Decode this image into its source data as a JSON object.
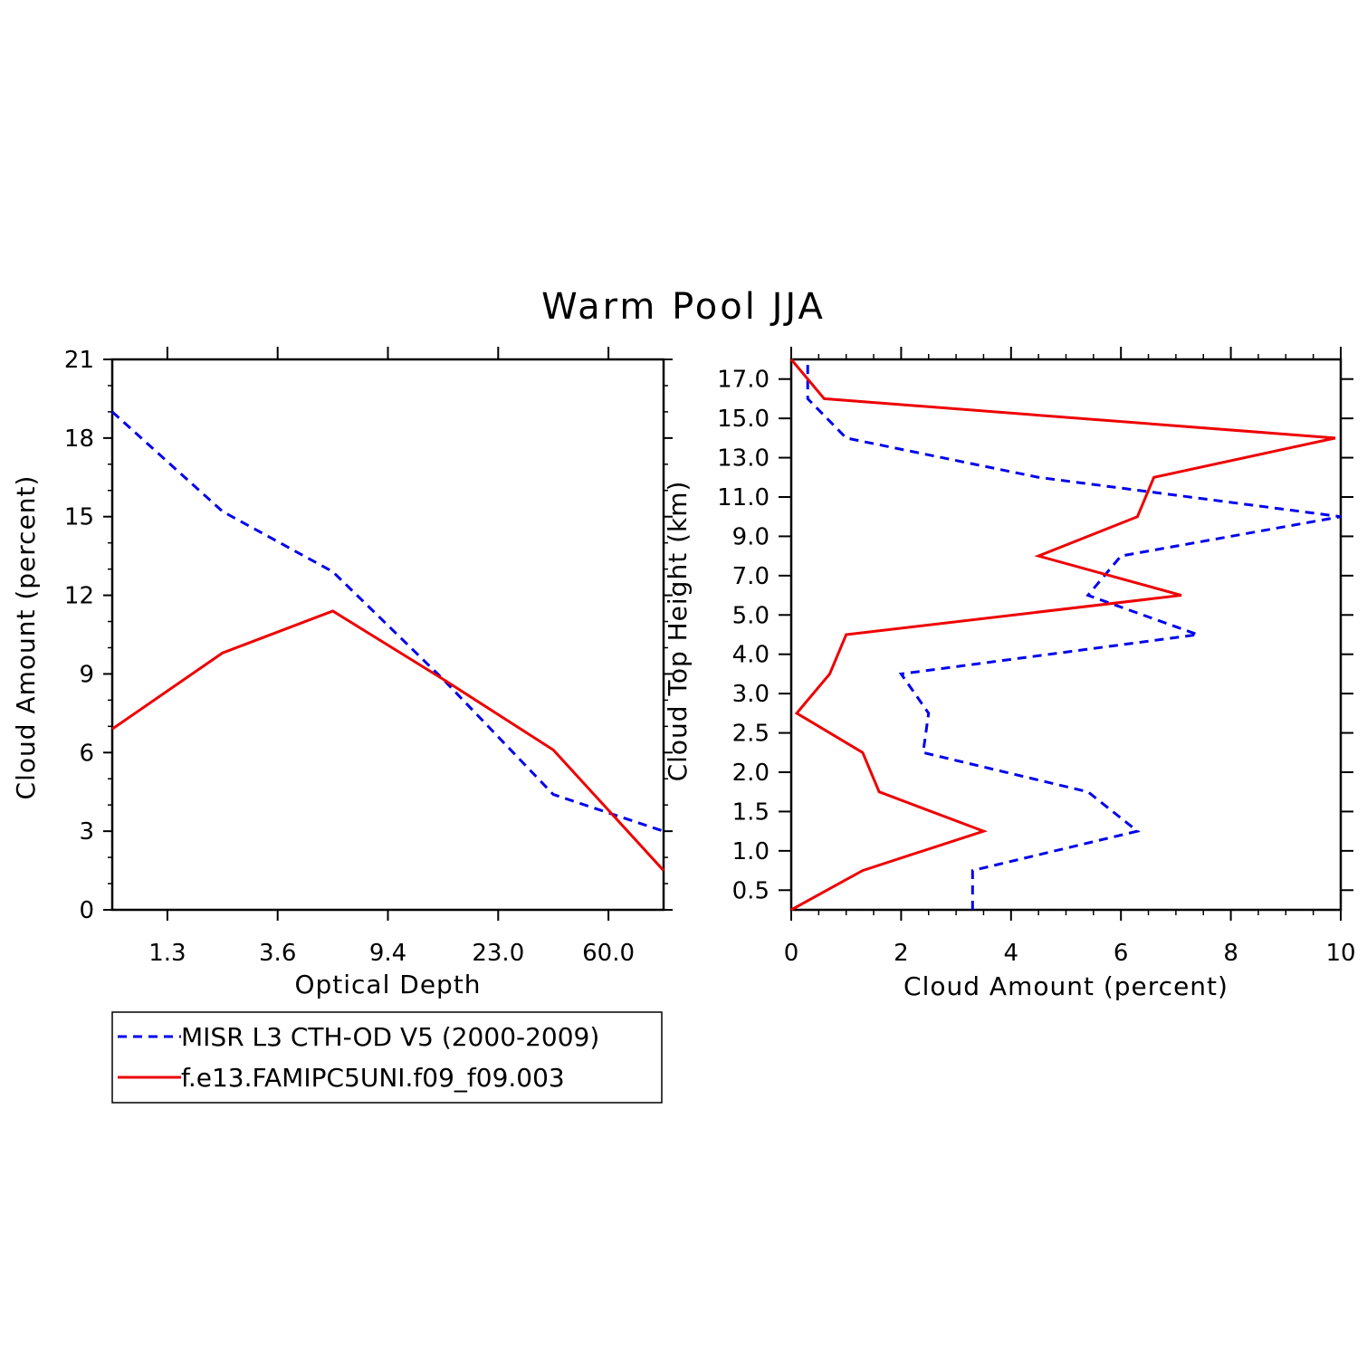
{
  "figure_title": "Warm Pool JJA",
  "colors": {
    "misr": "#0000ee",
    "model": "#ee0000",
    "axes": "#000000"
  },
  "legend": [
    {
      "label": "MISR L3 CTH-OD V5 (2000-2009)",
      "color": "#0000ee",
      "style": "dashed"
    },
    {
      "label": "f.e13.FAMIPC5UNI.f09_f09.003",
      "color": "#ee0000",
      "style": "solid"
    }
  ],
  "chart_data": [
    {
      "type": "line",
      "title": "Warm Pool JJA",
      "xlabel": "Optical Depth",
      "ylabel": "Cloud Amount (percent)",
      "x_bins": 5,
      "x": [
        0,
        1,
        2,
        3,
        4,
        5
      ],
      "xticks": [
        {
          "pos": 0.5,
          "label": "1.3"
        },
        {
          "pos": 1.5,
          "label": "3.6"
        },
        {
          "pos": 2.5,
          "label": "9.4"
        },
        {
          "pos": 3.5,
          "label": "23.0"
        },
        {
          "pos": 4.5,
          "label": "60.0"
        }
      ],
      "xlim": [
        0,
        5
      ],
      "ylim": [
        0,
        21
      ],
      "yticks": [
        0,
        3,
        6,
        9,
        12,
        15,
        18,
        21
      ],
      "series": [
        {
          "name": "MISR L3 CTH-OD V5 (2000-2009)",
          "values": [
            19.0,
            15.2,
            12.9,
            8.8,
            4.4,
            3.0
          ]
        },
        {
          "name": "f.e13.FAMIPC5UNI.f09_f09.003",
          "values": [
            6.9,
            9.8,
            11.4,
            8.8,
            6.1,
            1.5
          ]
        }
      ]
    },
    {
      "type": "line",
      "orientation": "vertical-profile",
      "xlabel": "Cloud Amount (percent)",
      "ylabel": "Cloud Top Height (km)",
      "xlim": [
        0,
        10
      ],
      "xticks": [
        0,
        2,
        4,
        6,
        8,
        10
      ],
      "ylim": [
        0,
        14
      ],
      "y_levels": [
        0,
        1,
        2,
        3,
        4,
        5,
        6,
        7,
        8,
        9,
        10,
        11,
        12,
        13,
        14
      ],
      "yticks": [
        {
          "pos": 0.5,
          "label": "0.5"
        },
        {
          "pos": 1.5,
          "label": "1.0"
        },
        {
          "pos": 2.5,
          "label": "1.5"
        },
        {
          "pos": 3.5,
          "label": "2.0"
        },
        {
          "pos": 4.5,
          "label": "2.5"
        },
        {
          "pos": 5.5,
          "label": "3.0"
        },
        {
          "pos": 6.5,
          "label": "4.0"
        },
        {
          "pos": 7.5,
          "label": "5.0"
        },
        {
          "pos": 8.5,
          "label": "7.0"
        },
        {
          "pos": 9.5,
          "label": "9.0"
        },
        {
          "pos": 10.5,
          "label": "11.0"
        },
        {
          "pos": 11.5,
          "label": "13.0"
        },
        {
          "pos": 12.5,
          "label": "15.0"
        },
        {
          "pos": 13.5,
          "label": "17.0"
        }
      ],
      "series": [
        {
          "name": "MISR L3 CTH-OD V5 (2000-2009)",
          "values": [
            3.3,
            3.3,
            6.3,
            5.4,
            2.4,
            2.5,
            2.0,
            7.4,
            5.4,
            6.0,
            10.0,
            4.5,
            1.0,
            0.3,
            0.3
          ]
        },
        {
          "name": "f.e13.FAMIPC5UNI.f09_f09.003",
          "values": [
            0.0,
            1.3,
            3.5,
            1.6,
            1.3,
            0.1,
            0.7,
            1.0,
            7.1,
            4.5,
            6.3,
            6.6,
            9.9,
            0.6,
            0.0
          ]
        }
      ]
    }
  ]
}
